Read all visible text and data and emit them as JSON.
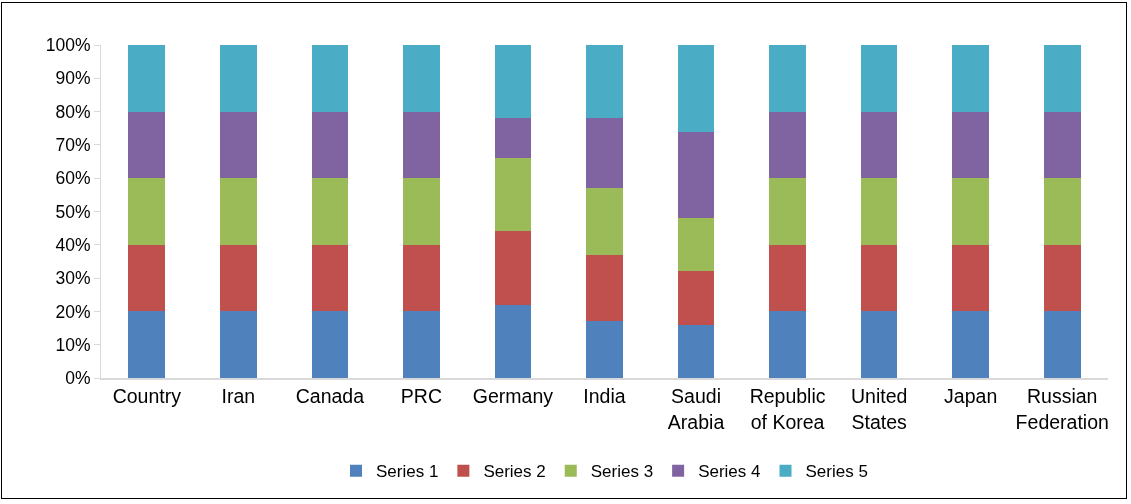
{
  "chart_data": {
    "type": "bar",
    "stacked": true,
    "categories": [
      "Country",
      "Iran",
      "Canada",
      "PRC",
      "Germany",
      "India",
      "Saudi Arabia",
      "Republic of Korea",
      "United States",
      "Japan",
      "Russian Federation"
    ],
    "series": [
      {
        "name": "Series 1",
        "color": "#4f81bd",
        "values": [
          20,
          20,
          20,
          20,
          22,
          17,
          16,
          20,
          20,
          20,
          20
        ]
      },
      {
        "name": "Series 2",
        "color": "#c0504d",
        "values": [
          20,
          20,
          20,
          20,
          22,
          20,
          16,
          20,
          20,
          20,
          20
        ]
      },
      {
        "name": "Series 3",
        "color": "#9bbb59",
        "values": [
          20,
          20,
          20,
          20,
          22,
          20,
          16,
          20,
          20,
          20,
          20
        ]
      },
      {
        "name": "Series 4",
        "color": "#8064a2",
        "values": [
          20,
          20,
          20,
          20,
          12,
          21,
          26,
          20,
          20,
          20,
          20
        ]
      },
      {
        "name": "Series 5",
        "color": "#4bacc6",
        "values": [
          20,
          20,
          20,
          20,
          22,
          22,
          26,
          20,
          20,
          20,
          20
        ]
      }
    ],
    "ylim": [
      0,
      100
    ],
    "yticks": [
      {
        "value": 0,
        "label": "0%"
      },
      {
        "value": 10,
        "label": "10%"
      },
      {
        "value": 20,
        "label": "20%"
      },
      {
        "value": 30,
        "label": "30%"
      },
      {
        "value": 40,
        "label": "40%"
      },
      {
        "value": 50,
        "label": "50%"
      },
      {
        "value": 60,
        "label": "60%"
      },
      {
        "value": 70,
        "label": "70%"
      },
      {
        "value": 80,
        "label": "80%"
      },
      {
        "value": 90,
        "label": "90%"
      },
      {
        "value": 100,
        "label": "100%"
      }
    ],
    "grid": false,
    "legend": "bottom"
  }
}
